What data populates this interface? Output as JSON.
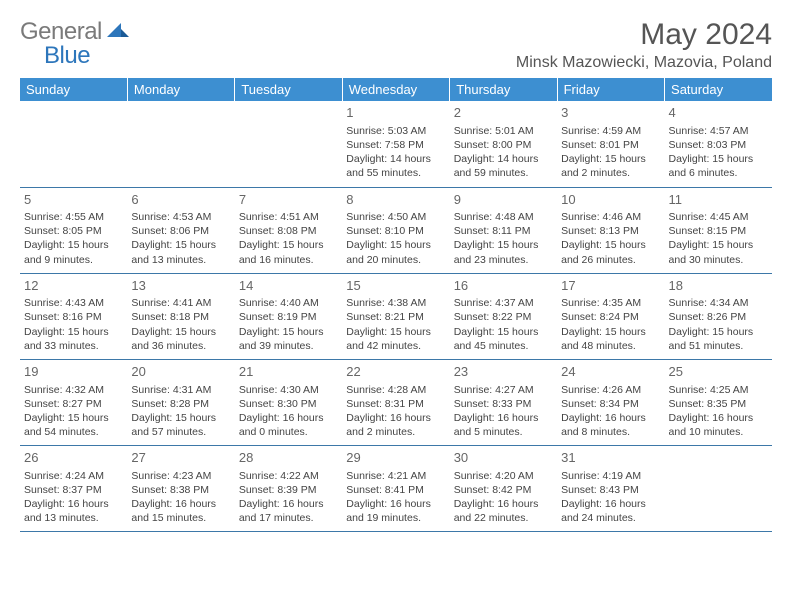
{
  "logo": {
    "general": "General",
    "blue": "Blue"
  },
  "title": "May 2024",
  "location": "Minsk Mazowiecki, Mazovia, Poland",
  "weekdays": [
    "Sunday",
    "Monday",
    "Tuesday",
    "Wednesday",
    "Thursday",
    "Friday",
    "Saturday"
  ],
  "colors": {
    "header_bg": "#3d8fd1",
    "header_text": "#ffffff",
    "border": "#3d78a8",
    "logo_gray": "#7a7a7a",
    "logo_blue": "#2d76bb",
    "text": "#444444"
  },
  "weeks": [
    [
      {
        "day": "",
        "sunrise": "",
        "sunset": "",
        "daylight": ""
      },
      {
        "day": "",
        "sunrise": "",
        "sunset": "",
        "daylight": ""
      },
      {
        "day": "",
        "sunrise": "",
        "sunset": "",
        "daylight": ""
      },
      {
        "day": "1",
        "sunrise": "Sunrise: 5:03 AM",
        "sunset": "Sunset: 7:58 PM",
        "daylight": "Daylight: 14 hours and 55 minutes."
      },
      {
        "day": "2",
        "sunrise": "Sunrise: 5:01 AM",
        "sunset": "Sunset: 8:00 PM",
        "daylight": "Daylight: 14 hours and 59 minutes."
      },
      {
        "day": "3",
        "sunrise": "Sunrise: 4:59 AM",
        "sunset": "Sunset: 8:01 PM",
        "daylight": "Daylight: 15 hours and 2 minutes."
      },
      {
        "day": "4",
        "sunrise": "Sunrise: 4:57 AM",
        "sunset": "Sunset: 8:03 PM",
        "daylight": "Daylight: 15 hours and 6 minutes."
      }
    ],
    [
      {
        "day": "5",
        "sunrise": "Sunrise: 4:55 AM",
        "sunset": "Sunset: 8:05 PM",
        "daylight": "Daylight: 15 hours and 9 minutes."
      },
      {
        "day": "6",
        "sunrise": "Sunrise: 4:53 AM",
        "sunset": "Sunset: 8:06 PM",
        "daylight": "Daylight: 15 hours and 13 minutes."
      },
      {
        "day": "7",
        "sunrise": "Sunrise: 4:51 AM",
        "sunset": "Sunset: 8:08 PM",
        "daylight": "Daylight: 15 hours and 16 minutes."
      },
      {
        "day": "8",
        "sunrise": "Sunrise: 4:50 AM",
        "sunset": "Sunset: 8:10 PM",
        "daylight": "Daylight: 15 hours and 20 minutes."
      },
      {
        "day": "9",
        "sunrise": "Sunrise: 4:48 AM",
        "sunset": "Sunset: 8:11 PM",
        "daylight": "Daylight: 15 hours and 23 minutes."
      },
      {
        "day": "10",
        "sunrise": "Sunrise: 4:46 AM",
        "sunset": "Sunset: 8:13 PM",
        "daylight": "Daylight: 15 hours and 26 minutes."
      },
      {
        "day": "11",
        "sunrise": "Sunrise: 4:45 AM",
        "sunset": "Sunset: 8:15 PM",
        "daylight": "Daylight: 15 hours and 30 minutes."
      }
    ],
    [
      {
        "day": "12",
        "sunrise": "Sunrise: 4:43 AM",
        "sunset": "Sunset: 8:16 PM",
        "daylight": "Daylight: 15 hours and 33 minutes."
      },
      {
        "day": "13",
        "sunrise": "Sunrise: 4:41 AM",
        "sunset": "Sunset: 8:18 PM",
        "daylight": "Daylight: 15 hours and 36 minutes."
      },
      {
        "day": "14",
        "sunrise": "Sunrise: 4:40 AM",
        "sunset": "Sunset: 8:19 PM",
        "daylight": "Daylight: 15 hours and 39 minutes."
      },
      {
        "day": "15",
        "sunrise": "Sunrise: 4:38 AM",
        "sunset": "Sunset: 8:21 PM",
        "daylight": "Daylight: 15 hours and 42 minutes."
      },
      {
        "day": "16",
        "sunrise": "Sunrise: 4:37 AM",
        "sunset": "Sunset: 8:22 PM",
        "daylight": "Daylight: 15 hours and 45 minutes."
      },
      {
        "day": "17",
        "sunrise": "Sunrise: 4:35 AM",
        "sunset": "Sunset: 8:24 PM",
        "daylight": "Daylight: 15 hours and 48 minutes."
      },
      {
        "day": "18",
        "sunrise": "Sunrise: 4:34 AM",
        "sunset": "Sunset: 8:26 PM",
        "daylight": "Daylight: 15 hours and 51 minutes."
      }
    ],
    [
      {
        "day": "19",
        "sunrise": "Sunrise: 4:32 AM",
        "sunset": "Sunset: 8:27 PM",
        "daylight": "Daylight: 15 hours and 54 minutes."
      },
      {
        "day": "20",
        "sunrise": "Sunrise: 4:31 AM",
        "sunset": "Sunset: 8:28 PM",
        "daylight": "Daylight: 15 hours and 57 minutes."
      },
      {
        "day": "21",
        "sunrise": "Sunrise: 4:30 AM",
        "sunset": "Sunset: 8:30 PM",
        "daylight": "Daylight: 16 hours and 0 minutes."
      },
      {
        "day": "22",
        "sunrise": "Sunrise: 4:28 AM",
        "sunset": "Sunset: 8:31 PM",
        "daylight": "Daylight: 16 hours and 2 minutes."
      },
      {
        "day": "23",
        "sunrise": "Sunrise: 4:27 AM",
        "sunset": "Sunset: 8:33 PM",
        "daylight": "Daylight: 16 hours and 5 minutes."
      },
      {
        "day": "24",
        "sunrise": "Sunrise: 4:26 AM",
        "sunset": "Sunset: 8:34 PM",
        "daylight": "Daylight: 16 hours and 8 minutes."
      },
      {
        "day": "25",
        "sunrise": "Sunrise: 4:25 AM",
        "sunset": "Sunset: 8:35 PM",
        "daylight": "Daylight: 16 hours and 10 minutes."
      }
    ],
    [
      {
        "day": "26",
        "sunrise": "Sunrise: 4:24 AM",
        "sunset": "Sunset: 8:37 PM",
        "daylight": "Daylight: 16 hours and 13 minutes."
      },
      {
        "day": "27",
        "sunrise": "Sunrise: 4:23 AM",
        "sunset": "Sunset: 8:38 PM",
        "daylight": "Daylight: 16 hours and 15 minutes."
      },
      {
        "day": "28",
        "sunrise": "Sunrise: 4:22 AM",
        "sunset": "Sunset: 8:39 PM",
        "daylight": "Daylight: 16 hours and 17 minutes."
      },
      {
        "day": "29",
        "sunrise": "Sunrise: 4:21 AM",
        "sunset": "Sunset: 8:41 PM",
        "daylight": "Daylight: 16 hours and 19 minutes."
      },
      {
        "day": "30",
        "sunrise": "Sunrise: 4:20 AM",
        "sunset": "Sunset: 8:42 PM",
        "daylight": "Daylight: 16 hours and 22 minutes."
      },
      {
        "day": "31",
        "sunrise": "Sunrise: 4:19 AM",
        "sunset": "Sunset: 8:43 PM",
        "daylight": "Daylight: 16 hours and 24 minutes."
      },
      {
        "day": "",
        "sunrise": "",
        "sunset": "",
        "daylight": ""
      }
    ]
  ]
}
